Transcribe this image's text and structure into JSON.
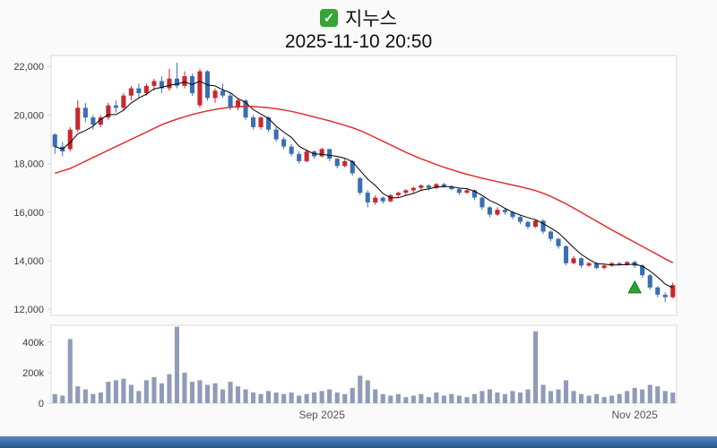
{
  "header": {
    "title": "지누스",
    "datetime": "2025-11-10 20:50",
    "checkbox_icon": "checkbox-checked-icon"
  },
  "colors": {
    "background": "#fafafa",
    "up": "#c8282d",
    "down": "#3a6fb4",
    "ma_short": "#000000",
    "ma_long": "#e03030",
    "volume_bar": "#8f9bb8",
    "marker_green": "#2ca52c",
    "marker_green_dark": "#1c7a1c",
    "panel_border": "#d9d9d9",
    "panel_bg": "#ffffff",
    "axis_text": "#3c3c3c",
    "checkbox_green": "#35a535",
    "footer_bar_top": "#5a86c0",
    "footer_bar_bottom": "#24568f"
  },
  "chart_data": {
    "type": "candlestick",
    "title": "지누스",
    "subtitle": "2025-11-10 20:50",
    "legend": "none",
    "grid": "off",
    "y_axis": {
      "range": [
        11750,
        22450
      ],
      "ticks": [
        {
          "value": 22000,
          "label": "22,000"
        },
        {
          "value": 20000,
          "label": "20,000"
        },
        {
          "value": 18000,
          "label": "18,000"
        },
        {
          "value": 16000,
          "label": "16,000"
        },
        {
          "value": 14000,
          "label": "14,000"
        },
        {
          "value": 12000,
          "label": "12,000"
        }
      ]
    },
    "volume_axis": {
      "max_k": 510,
      "ticks": [
        {
          "value": 400,
          "label": "400k"
        },
        {
          "value": 200,
          "label": "200k"
        },
        {
          "value": 0,
          "label": "0"
        }
      ]
    },
    "x_axis_labels": [
      {
        "label": "Sep 2025",
        "index": 35
      },
      {
        "label": "Nov 2025",
        "index": 76
      }
    ],
    "candles_format": [
      "open",
      "high",
      "low",
      "close",
      "volume_k"
    ],
    "candles": [
      [
        19200,
        19250,
        18400,
        18700,
        60
      ],
      [
        18700,
        18900,
        18300,
        18500,
        50
      ],
      [
        18600,
        19500,
        18500,
        19400,
        420
      ],
      [
        19400,
        20600,
        19300,
        20300,
        110
      ],
      [
        20300,
        20500,
        19700,
        19900,
        90
      ],
      [
        19900,
        20000,
        19400,
        19600,
        60
      ],
      [
        19600,
        20000,
        19500,
        19900,
        70
      ],
      [
        19900,
        20500,
        19800,
        20400,
        140
      ],
      [
        20400,
        20600,
        20100,
        20300,
        150
      ],
      [
        20300,
        20900,
        20200,
        20800,
        160
      ],
      [
        20800,
        21200,
        20600,
        21100,
        120
      ],
      [
        21100,
        21300,
        20700,
        20900,
        80
      ],
      [
        20900,
        21300,
        20800,
        21200,
        150
      ],
      [
        21200,
        21500,
        21000,
        21400,
        170
      ],
      [
        21400,
        21600,
        20900,
        21100,
        130
      ],
      [
        21100,
        21900,
        21000,
        21500,
        190
      ],
      [
        21500,
        22150,
        21100,
        21200,
        500
      ],
      [
        21200,
        21800,
        21100,
        21600,
        200
      ],
      [
        21600,
        21700,
        20800,
        20900,
        140
      ],
      [
        20400,
        21900,
        20300,
        21800,
        150
      ],
      [
        21800,
        21850,
        20600,
        20700,
        120
      ],
      [
        20700,
        21100,
        20500,
        21000,
        130
      ],
      [
        21000,
        21300,
        20700,
        20800,
        90
      ],
      [
        20800,
        20900,
        20200,
        20300,
        140
      ],
      [
        20300,
        20700,
        20200,
        20600,
        110
      ],
      [
        20600,
        20650,
        19800,
        19900,
        90
      ],
      [
        19900,
        20000,
        19400,
        19500,
        70
      ],
      [
        19500,
        19950,
        19400,
        19900,
        60
      ],
      [
        19900,
        19950,
        19300,
        19400,
        80
      ],
      [
        19400,
        19500,
        18900,
        19000,
        70
      ],
      [
        19000,
        19100,
        18600,
        18700,
        60
      ],
      [
        18700,
        18800,
        18300,
        18400,
        70
      ],
      [
        18400,
        18500,
        18000,
        18100,
        50
      ],
      [
        18100,
        18600,
        18050,
        18500,
        60
      ],
      [
        18500,
        18550,
        18200,
        18300,
        70
      ],
      [
        18300,
        18650,
        18250,
        18600,
        80
      ],
      [
        18600,
        18600,
        18100,
        18200,
        90
      ],
      [
        18200,
        18250,
        17800,
        17900,
        70
      ],
      [
        17900,
        18200,
        17850,
        18100,
        60
      ],
      [
        18100,
        18150,
        17500,
        17600,
        100
      ],
      [
        17400,
        17450,
        16700,
        16800,
        180
      ],
      [
        16800,
        16900,
        16200,
        16400,
        150
      ],
      [
        16400,
        16700,
        16300,
        16600,
        90
      ],
      [
        16600,
        16650,
        16350,
        16450,
        60
      ],
      [
        16450,
        16750,
        16400,
        16700,
        50
      ],
      [
        16700,
        16850,
        16600,
        16800,
        60
      ],
      [
        16800,
        16950,
        16700,
        16900,
        40
      ],
      [
        16900,
        17050,
        16800,
        17000,
        50
      ],
      [
        17000,
        17150,
        16900,
        17100,
        60
      ],
      [
        17100,
        17150,
        16900,
        17000,
        40
      ],
      [
        17000,
        17200,
        16950,
        17150,
        70
      ],
      [
        17150,
        17200,
        17000,
        17050,
        50
      ],
      [
        17050,
        17100,
        16900,
        16950,
        60
      ],
      [
        16950,
        17000,
        16700,
        16800,
        50
      ],
      [
        16800,
        16950,
        16750,
        16900,
        40
      ],
      [
        16900,
        16950,
        16500,
        16600,
        60
      ],
      [
        16600,
        16650,
        16100,
        16200,
        80
      ],
      [
        16200,
        16250,
        15800,
        15900,
        90
      ],
      [
        15900,
        16200,
        15850,
        16100,
        70
      ],
      [
        16100,
        16150,
        15900,
        16000,
        60
      ],
      [
        16000,
        16050,
        15700,
        15800,
        80
      ],
      [
        15800,
        15850,
        15500,
        15600,
        70
      ],
      [
        15600,
        15650,
        15300,
        15400,
        90
      ],
      [
        15400,
        15700,
        15350,
        15650,
        470
      ],
      [
        15650,
        15700,
        15100,
        15200,
        120
      ],
      [
        15200,
        15250,
        14800,
        14900,
        80
      ],
      [
        14900,
        14950,
        14500,
        14600,
        90
      ],
      [
        14600,
        14650,
        13800,
        13900,
        150
      ],
      [
        13900,
        14200,
        13850,
        14100,
        80
      ],
      [
        14100,
        14150,
        13700,
        13800,
        60
      ],
      [
        13800,
        13950,
        13750,
        13900,
        50
      ],
      [
        13900,
        13950,
        13650,
        13700,
        60
      ],
      [
        13700,
        13850,
        13650,
        13800,
        40
      ],
      [
        13800,
        13950,
        13750,
        13900,
        50
      ],
      [
        13900,
        13950,
        13800,
        13850,
        60
      ],
      [
        13850,
        13980,
        13800,
        13950,
        80
      ],
      [
        13950,
        14000,
        13700,
        13800,
        100
      ],
      [
        13800,
        13850,
        13300,
        13400,
        90
      ],
      [
        13400,
        13450,
        12800,
        12900,
        120
      ],
      [
        12900,
        12950,
        12500,
        12600,
        110
      ],
      [
        12600,
        12700,
        12300,
        12500,
        80
      ],
      [
        12500,
        13100,
        12450,
        13000,
        70
      ]
    ],
    "ma_short_window": 5,
    "ma_long_values": [
      17600,
      17700,
      17800,
      17950,
      18100,
      18250,
      18400,
      18550,
      18700,
      18850,
      19000,
      19150,
      19300,
      19450,
      19600,
      19720,
      19830,
      19930,
      20020,
      20100,
      20170,
      20230,
      20280,
      20320,
      20350,
      20360,
      20350,
      20330,
      20300,
      20260,
      20210,
      20150,
      20080,
      20000,
      19920,
      19840,
      19760,
      19670,
      19580,
      19480,
      19360,
      19220,
      19070,
      18920,
      18770,
      18620,
      18470,
      18330,
      18200,
      18080,
      17960,
      17850,
      17750,
      17650,
      17560,
      17480,
      17400,
      17330,
      17260,
      17190,
      17120,
      17050,
      16970,
      16890,
      16780,
      16650,
      16500,
      16340,
      16170,
      15990,
      15810,
      15630,
      15450,
      15270,
      15100,
      14930,
      14760,
      14590,
      14420,
      14250,
      14080,
      13920
    ],
    "marker": {
      "type": "triangle-up",
      "index": 76,
      "price": 12900
    }
  }
}
